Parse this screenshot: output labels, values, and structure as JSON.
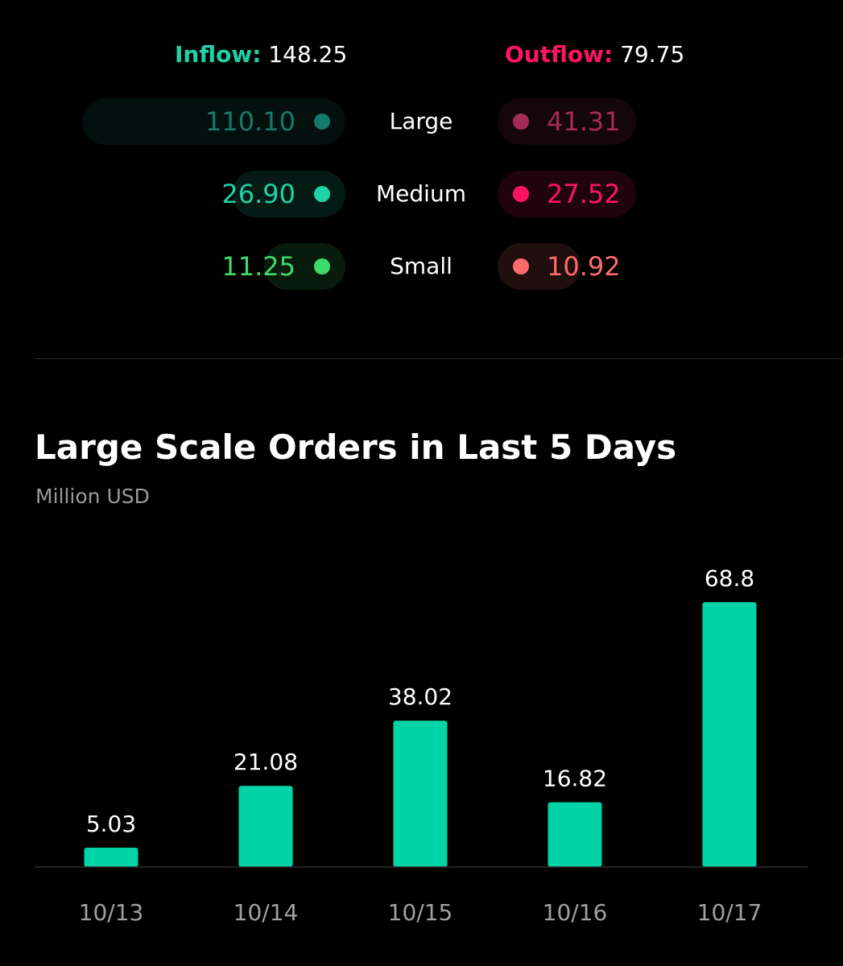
{
  "flow_summary": {
    "inflow_label": "Inflow:",
    "inflow_value": "148.25",
    "outflow_label": "Outflow:",
    "outflow_value": "79.75",
    "rows": [
      {
        "category": "Large",
        "inflow": "110.10",
        "outflow": "41.31",
        "inflow_color": "#147a6a",
        "outflow_color": "#a32b55",
        "inflow_share": 1.0,
        "outflow_share": 0.52
      },
      {
        "category": "Medium",
        "inflow": "26.90",
        "outflow": "27.52",
        "inflow_color": "#1fd1a4",
        "outflow_color": "#ff1464",
        "inflow_share": 0.43,
        "outflow_share": 0.52
      },
      {
        "category": "Small",
        "inflow": "11.25",
        "outflow": "10.92",
        "inflow_color": "#3ed96b",
        "outflow_color": "#ff6b6b",
        "inflow_share": 0.31,
        "outflow_share": 0.31
      }
    ]
  },
  "chart_data": {
    "type": "bar",
    "title": "Large Scale Orders in Last 5 Days",
    "ylabel": "Million USD",
    "categories": [
      "10/13",
      "10/14",
      "10/15",
      "10/16",
      "10/17"
    ],
    "values": [
      5.03,
      21.08,
      38.02,
      16.82,
      68.8
    ],
    "value_labels": [
      "5.03",
      "21.08",
      "38.02",
      "16.82",
      "68.8"
    ],
    "bar_color": "#00d4a6",
    "ylim": [
      0,
      68.8
    ],
    "grid": false
  }
}
